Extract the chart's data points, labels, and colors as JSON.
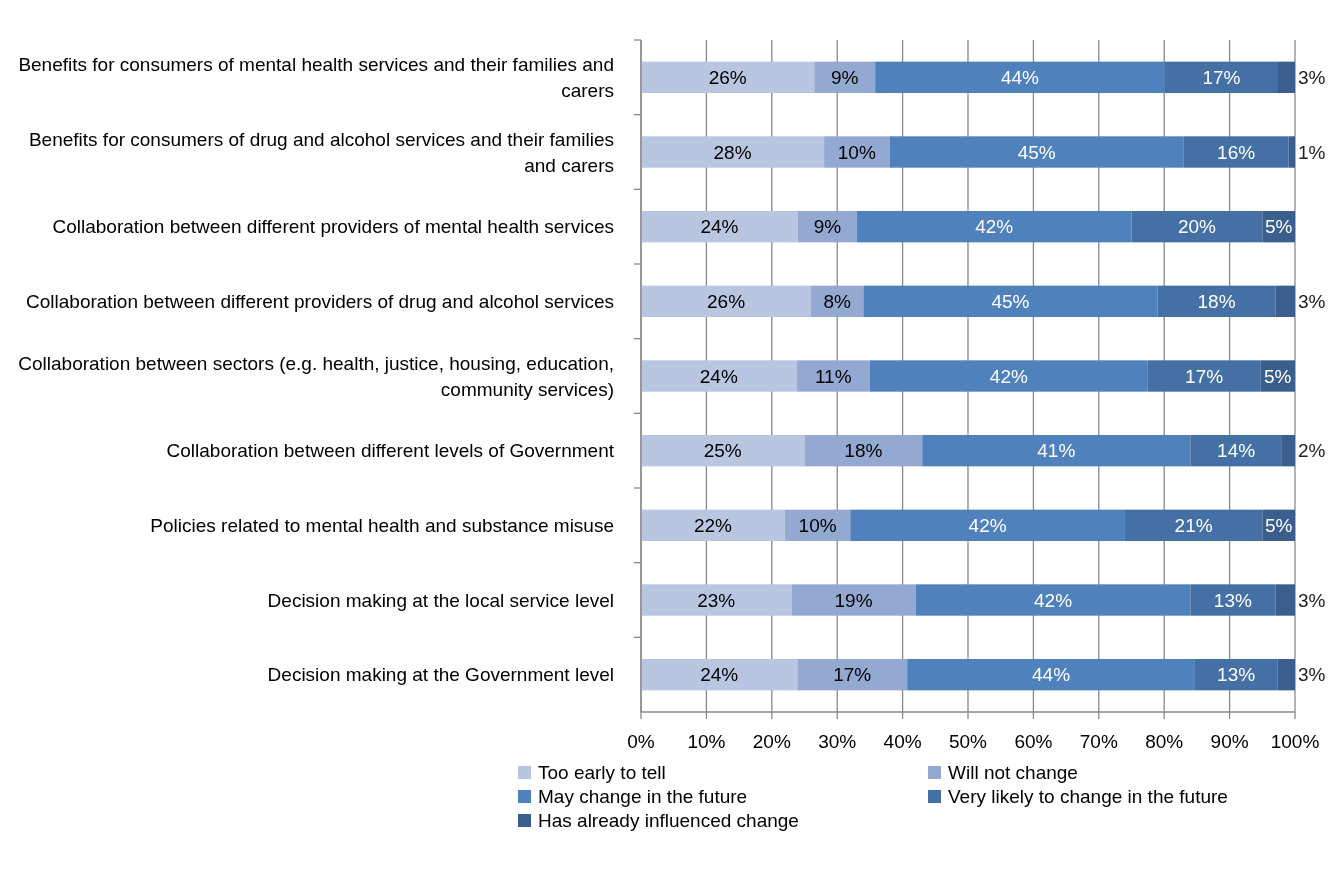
{
  "chart_data": {
    "type": "bar",
    "orientation": "horizontal",
    "stacked": true,
    "categories": [
      "Benefits for consumers of mental health services and their families and carers",
      "Benefits for consumers of drug and alcohol services and their families and carers",
      "Collaboration between different providers of mental health services",
      "Collaboration between different providers of drug and alcohol services",
      "Collaboration between sectors (e.g. health, justice, housing, education, community services)",
      "Collaboration between different levels of Government",
      "Policies related to mental health and substance misuse",
      "Decision making at the local service level",
      "Decision making at the Government level"
    ],
    "series": [
      {
        "name": "Too early to tell",
        "color": "#b9c6e1",
        "values": [
          26.5,
          28,
          24,
          26,
          23.8,
          25,
          22,
          23,
          23.9
        ],
        "value_labels": [
          "26%",
          "28%",
          "24%",
          "26%",
          "24%",
          "25%",
          "22%",
          "23%",
          "24%"
        ]
      },
      {
        "name": "Will not change",
        "color": "#93a9d2",
        "values": [
          9.3,
          10,
          9,
          8,
          11.2,
          18,
          10,
          19,
          16.8
        ],
        "value_labels": [
          "9%",
          "10%",
          "9%",
          "8%",
          "11%",
          "18%",
          "10%",
          "19%",
          "17%"
        ]
      },
      {
        "name": "May change in the future",
        "color": "#4f81bd",
        "values": [
          44.3,
          45,
          42,
          45,
          42.5,
          41,
          42,
          42,
          44.0
        ],
        "value_labels": [
          "44%",
          "45%",
          "42%",
          "45%",
          "42%",
          "41%",
          "42%",
          "42%",
          "44%"
        ]
      },
      {
        "name": "Very likely to change in the future",
        "color": "#4570a5",
        "values": [
          17.3,
          16,
          20,
          18,
          17.2,
          14,
          21,
          13,
          12.6
        ],
        "value_labels": [
          "17%",
          "16%",
          "20%",
          "18%",
          "17%",
          "14%",
          "21%",
          "13%",
          "13%"
        ]
      },
      {
        "name": "Has already influenced change",
        "color": "#3a5f8e",
        "values": [
          2.6,
          1,
          5,
          3,
          5.3,
          2,
          5,
          3,
          2.7
        ],
        "value_labels": [
          "3%",
          "1%",
          "5%",
          "3%",
          "5%",
          "2%",
          "5%",
          "3%",
          "3%"
        ]
      }
    ],
    "xlim": [
      0,
      100
    ],
    "xticks": [
      {
        "value": 0,
        "label": "0%"
      },
      {
        "value": 10,
        "label": "10%"
      },
      {
        "value": 20,
        "label": "20%"
      },
      {
        "value": 30,
        "label": "30%"
      },
      {
        "value": 40,
        "label": "40%"
      },
      {
        "value": 50,
        "label": "50%"
      },
      {
        "value": 60,
        "label": "60%"
      },
      {
        "value": 70,
        "label": "70%"
      },
      {
        "value": 80,
        "label": "80%"
      },
      {
        "value": 90,
        "label": "90%"
      },
      {
        "value": 100,
        "label": "100%"
      }
    ],
    "grid": "x",
    "legend": "bottom"
  }
}
